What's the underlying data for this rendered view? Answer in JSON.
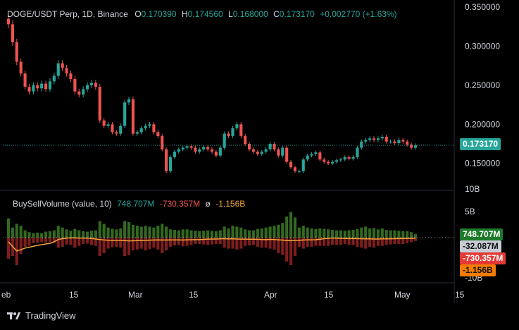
{
  "header": {
    "symbol": "DOGE/USDT Perp, 1D, Binance",
    "open_label": "O",
    "open": "0.170390",
    "high_label": "H",
    "high": "0.174560",
    "low_label": "L",
    "low": "0.168000",
    "close_label": "C",
    "close": "0.173170",
    "change": "+0.002770 (+1.63%)"
  },
  "indicator": {
    "name": "BuySellVolume (value, 10)",
    "buy": "748.707M",
    "sell": "-730.357M",
    "ratio_symbol": "ø",
    "net": "-1.156B"
  },
  "price_axis": [
    "0.350000",
    "0.300000",
    "0.250000",
    "0.200000",
    "0.150000"
  ],
  "volume_axis": [
    "10B",
    "5B",
    "-10B"
  ],
  "time_axis": [
    "eb",
    "15",
    "Mar",
    "15",
    "Apr",
    "15",
    "May",
    "15"
  ],
  "price_tag": "0.173170",
  "volume_tags": {
    "buy": "748.707M",
    "avg": "-32.087M",
    "sell": "-730.357M",
    "net": "-1.156B"
  },
  "colors": {
    "up": "#26a69a",
    "down": "#ef5350",
    "buy_bar": "#33691e",
    "sell_bar": "#7f1d1d",
    "avg_line": "#f2a53b",
    "neutral": "#d1d4dc"
  },
  "footer": {
    "brand": "TradingView"
  },
  "chart_data": {
    "type": "candlestick",
    "ylim": [
      0.12,
      0.35
    ],
    "last_close": 0.17317,
    "closes": [
      0.328,
      0.305,
      0.28,
      0.265,
      0.248,
      0.242,
      0.25,
      0.246,
      0.252,
      0.245,
      0.255,
      0.262,
      0.278,
      0.272,
      0.265,
      0.258,
      0.242,
      0.238,
      0.245,
      0.25,
      0.253,
      0.248,
      0.205,
      0.198,
      0.2,
      0.19,
      0.188,
      0.198,
      0.228,
      0.232,
      0.188,
      0.19,
      0.195,
      0.198,
      0.2,
      0.19,
      0.185,
      0.168,
      0.14,
      0.158,
      0.165,
      0.168,
      0.17,
      0.172,
      0.17,
      0.165,
      0.168,
      0.171,
      0.168,
      0.165,
      0.16,
      0.17,
      0.188,
      0.185,
      0.195,
      0.2,
      0.185,
      0.175,
      0.168,
      0.165,
      0.162,
      0.165,
      0.168,
      0.175,
      0.168,
      0.16,
      0.17,
      0.152,
      0.145,
      0.14,
      0.14,
      0.155,
      0.16,
      0.162,
      0.164,
      0.155,
      0.152,
      0.15,
      0.152,
      0.154,
      0.155,
      0.158,
      0.156,
      0.158,
      0.17,
      0.178,
      0.18,
      0.182,
      0.18,
      0.182,
      0.184,
      0.178,
      0.178,
      0.176,
      0.18,
      0.178,
      0.174,
      0.17,
      0.173
    ],
    "buy_volume_b": [
      4.2,
      2.2,
      3.0,
      2.6,
      1.6,
      1.2,
      1.0,
      1.1,
      1.0,
      1.3,
      1.4,
      1.6,
      2.6,
      2.2,
      1.8,
      1.5,
      1.9,
      1.6,
      1.4,
      1.3,
      1.5,
      1.6,
      3.6,
      3.0,
      2.2,
      1.9,
      1.8,
      2.0,
      3.6,
      3.4,
      2.8,
      2.6,
      2.4,
      2.6,
      2.4,
      2.2,
      2.6,
      3.0,
      2.4,
      1.8,
      1.7,
      1.6,
      1.8,
      1.8,
      1.6,
      1.5,
      1.4,
      1.5,
      1.6,
      1.5,
      1.4,
      1.6,
      2.4,
      2.0,
      2.6,
      2.4,
      2.2,
      1.8,
      1.6,
      1.6,
      1.9,
      2.0,
      2.2,
      2.4,
      2.6,
      2.8,
      3.2,
      4.6,
      5.6,
      4.4,
      2.2,
      2.6,
      2.2,
      2.0,
      1.9,
      2.0,
      1.9,
      1.8,
      1.7,
      1.6,
      1.6,
      1.5,
      1.6,
      1.7,
      1.9,
      2.2,
      2.4,
      2.0,
      2.1,
      1.8,
      2.0,
      1.7,
      1.6,
      1.6,
      1.5,
      1.4,
      1.4,
      1.2,
      0.75
    ],
    "sell_volume_b": [
      -4.6,
      -4.0,
      -6.0,
      -3.6,
      -2.0,
      -1.8,
      -1.2,
      -1.1,
      -1.0,
      -1.1,
      -1.0,
      -1.1,
      -2.2,
      -2.0,
      -1.5,
      -1.6,
      -2.2,
      -1.8,
      -1.4,
      -1.3,
      -1.6,
      -1.8,
      -4.0,
      -3.4,
      -2.4,
      -2.1,
      -2.0,
      -2.2,
      -4.0,
      -3.8,
      -2.8,
      -2.6,
      -2.4,
      -2.8,
      -2.5,
      -2.2,
      -2.6,
      -3.4,
      -2.8,
      -2.0,
      -1.7,
      -1.6,
      -1.9,
      -1.8,
      -1.6,
      -1.4,
      -1.4,
      -1.5,
      -1.6,
      -1.5,
      -1.4,
      -1.4,
      -2.2,
      -2.4,
      -2.4,
      -2.6,
      -2.4,
      -1.8,
      -1.7,
      -1.6,
      -2.0,
      -2.2,
      -2.2,
      -2.4,
      -2.6,
      -3.4,
      -3.8,
      -5.2,
      -6.0,
      -4.0,
      -2.0,
      -2.4,
      -2.0,
      -2.0,
      -1.8,
      -1.8,
      -1.8,
      -1.8,
      -1.6,
      -1.6,
      -1.6,
      -1.4,
      -1.6,
      -1.6,
      -2.0,
      -2.2,
      -2.4,
      -2.0,
      -2.2,
      -1.8,
      -1.8,
      -1.6,
      -1.5,
      -1.4,
      -1.4,
      -1.4,
      -1.2,
      -1.0,
      -0.73
    ],
    "volume_ylim": [
      -10,
      10
    ]
  }
}
